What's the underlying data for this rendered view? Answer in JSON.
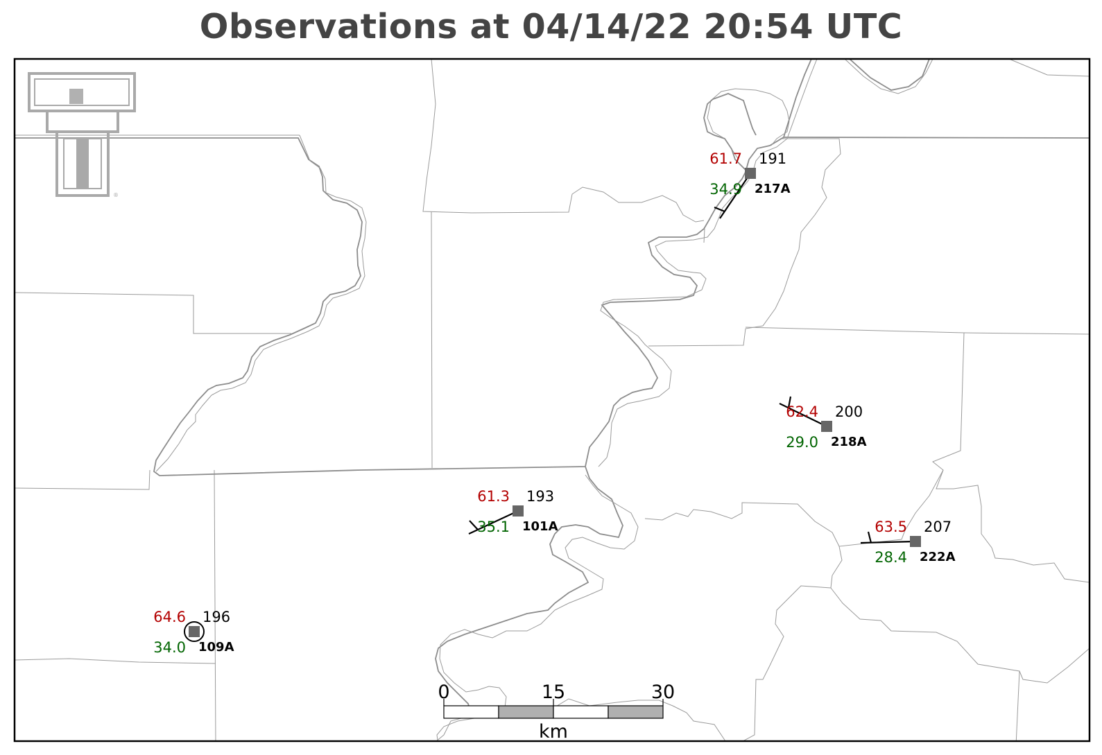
{
  "title": "Observations at 04/14/22 20:54 UTC",
  "logo": {
    "icon": "texas-tech-double-t-logo",
    "color": "#a9a9a9"
  },
  "colors": {
    "temperature": "#b30000",
    "dewpoint": "#006400",
    "station_marker": "#666666"
  },
  "stations": [
    {
      "id": "217A",
      "temp": "61.7",
      "dewpoint": "34.9",
      "wind_dir": "191"
    },
    {
      "id": "218A",
      "temp": "62.4",
      "dewpoint": "29.0",
      "wind_dir": "200"
    },
    {
      "id": "101A",
      "temp": "61.3",
      "dewpoint": "35.1",
      "wind_dir": "193"
    },
    {
      "id": "222A",
      "temp": "63.5",
      "dewpoint": "28.4",
      "wind_dir": "207"
    },
    {
      "id": "109A",
      "temp": "64.6",
      "dewpoint": "34.0",
      "wind_dir": "196"
    }
  ],
  "scale_bar": {
    "ticks": [
      "0",
      "15",
      "30"
    ],
    "unit": "km"
  }
}
